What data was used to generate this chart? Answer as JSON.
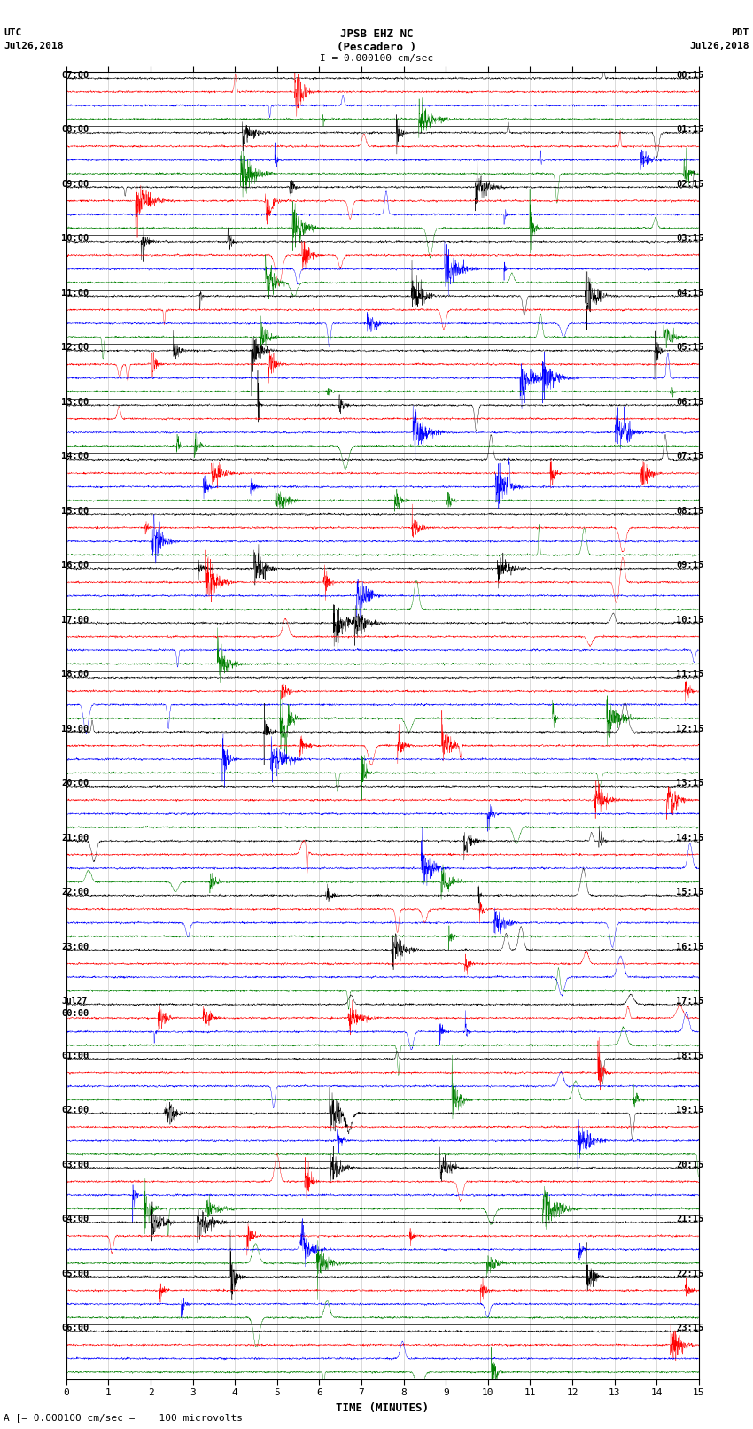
{
  "title_line1": "JPSB EHZ NC",
  "title_line2": "(Pescadero )",
  "title_line3": "I = 0.000100 cm/sec",
  "scale_bar_label": "I = 0.000100 cm/sec",
  "left_header_line1": "UTC",
  "left_header_line2": "Jul26,2018",
  "right_header_line1": "PDT",
  "right_header_line2": "Jul26,2018",
  "xlabel": "TIME (MINUTES)",
  "bottom_note": "A [= 0.000100 cm/sec =    100 microvolts",
  "x_ticks": [
    0,
    1,
    2,
    3,
    4,
    5,
    6,
    7,
    8,
    9,
    10,
    11,
    12,
    13,
    14,
    15
  ],
  "trace_colors": [
    "black",
    "red",
    "blue",
    "green"
  ],
  "n_rows": 24,
  "minutes_per_row": 15,
  "background_color": "white",
  "left_utc_labels": [
    "07:00",
    "08:00",
    "09:00",
    "10:00",
    "11:00",
    "12:00",
    "13:00",
    "14:00",
    "15:00",
    "16:00",
    "17:00",
    "18:00",
    "19:00",
    "20:00",
    "21:00",
    "22:00",
    "23:00",
    "Jul27\n00:00",
    "01:00",
    "02:00",
    "03:00",
    "04:00",
    "05:00",
    "06:00"
  ],
  "right_pdt_labels": [
    "00:15",
    "01:15",
    "02:15",
    "03:15",
    "04:15",
    "05:15",
    "06:15",
    "07:15",
    "08:15",
    "09:15",
    "10:15",
    "11:15",
    "12:15",
    "13:15",
    "14:15",
    "15:15",
    "16:15",
    "17:15",
    "18:15",
    "19:15",
    "20:15",
    "21:15",
    "22:15",
    "23:15"
  ],
  "fig_width": 8.5,
  "fig_height": 16.13,
  "dpi": 100
}
